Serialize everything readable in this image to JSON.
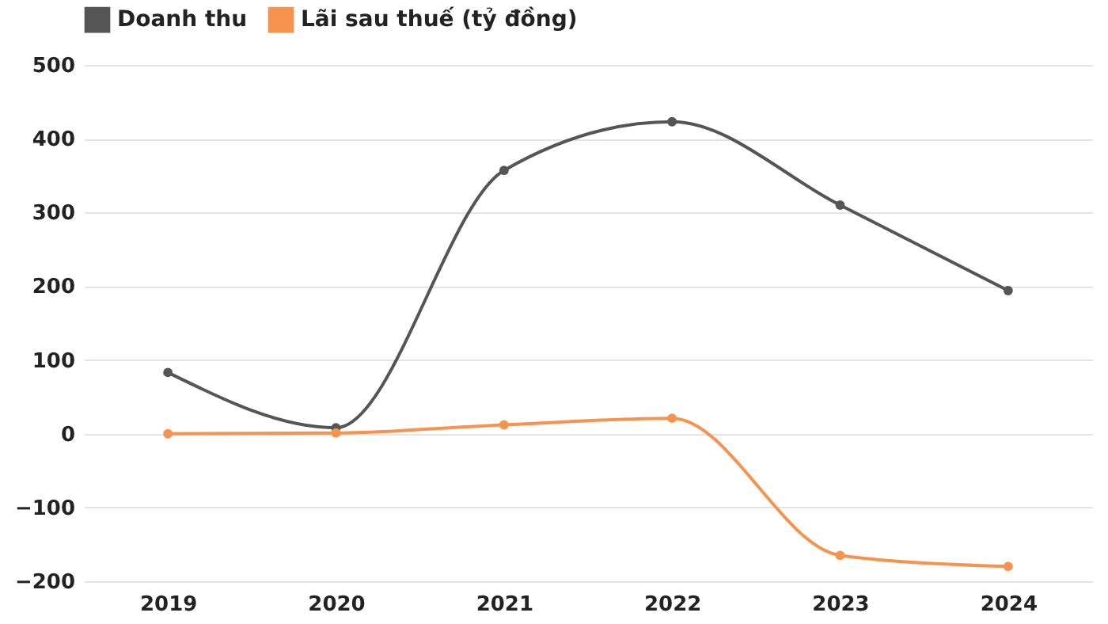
{
  "chart_data": {
    "type": "line",
    "categories": [
      "2019",
      "2020",
      "2021",
      "2022",
      "2023",
      "2024"
    ],
    "series": [
      {
        "name": "Doanh thu",
        "color": "#555555",
        "values": [
          83,
          8,
          357,
          423,
          310,
          194
        ]
      },
      {
        "name": "Lãi sau thuế (tỷ đồng)",
        "color": "#f5934f",
        "values": [
          0,
          1,
          12,
          21,
          -165,
          -180
        ]
      }
    ],
    "ylim": [
      -200,
      500
    ],
    "yticks": [
      -200,
      -100,
      0,
      100,
      200,
      300,
      400,
      500
    ],
    "grid": "y",
    "legend": "top",
    "marker": "circle",
    "line_style": "solid"
  }
}
